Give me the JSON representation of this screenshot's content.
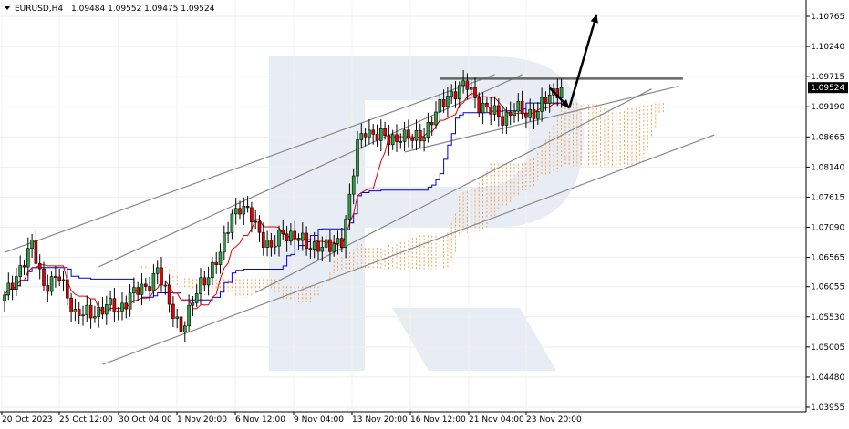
{
  "header": {
    "symbol": "EURUSD,H4",
    "ohlc": "1.09484 1.09552 1.09475 1.09524"
  },
  "price_label": "1.09524",
  "colors": {
    "bull": "#2ea043",
    "bear": "#e60000",
    "tenkan": "#e60000",
    "kijun": "#0000cc",
    "cloud": "#f5a04a",
    "trend": "#888888",
    "arrow": "#000000",
    "watermark": "#d6dfec"
  },
  "chart_data": {
    "type": "candlestick",
    "title": "EURUSD,H4",
    "ylim": [
      1.03955,
      1.11
    ],
    "y_ticks": [
      "1.10765",
      "1.10240",
      "1.09715",
      "1.09190",
      "1.08665",
      "1.08140",
      "1.07615",
      "1.07090",
      "1.06565",
      "1.06055",
      "1.05530",
      "1.05005",
      "1.04480",
      "1.03955"
    ],
    "x_ticks": [
      "20 Oct 2023",
      "25 Oct 12:00",
      "30 Oct 04:00",
      "1 Nov 20:00",
      "6 Nov 12:00",
      "9 Nov 04:00",
      "13 Nov 20:00",
      "16 Nov 12:00",
      "21 Nov 04:00",
      "23 Nov 20:00"
    ],
    "current_price": 1.09524,
    "candle_anchors": [
      [
        0,
        1.0585
      ],
      [
        4,
        1.064
      ],
      [
        7,
        1.0675
      ],
      [
        10,
        1.061
      ],
      [
        14,
        1.062
      ],
      [
        18,
        1.056
      ],
      [
        22,
        1.0555
      ],
      [
        26,
        1.0575
      ],
      [
        29,
        1.056
      ],
      [
        32,
        1.0595
      ],
      [
        36,
        1.06
      ],
      [
        39,
        1.064
      ],
      [
        42,
        1.057
      ],
      [
        45,
        1.0535
      ],
      [
        47,
        1.056
      ],
      [
        50,
        1.061
      ],
      [
        53,
        1.064
      ],
      [
        55,
        1.066
      ],
      [
        58,
        1.0735
      ],
      [
        60,
        1.0745
      ],
      [
        63,
        1.0725
      ],
      [
        66,
        1.069
      ],
      [
        68,
        1.067
      ],
      [
        71,
        1.07
      ],
      [
        74,
        1.0695
      ],
      [
        77,
        1.0675
      ],
      [
        80,
        1.068
      ],
      [
        83,
        1.067
      ],
      [
        86,
        1.069
      ],
      [
        88,
        1.076
      ],
      [
        90,
        1.085
      ],
      [
        92,
        1.088
      ],
      [
        95,
        1.087
      ],
      [
        98,
        1.086
      ],
      [
        101,
        1.087
      ],
      [
        104,
        1.086
      ],
      [
        107,
        1.0875
      ],
      [
        110,
        1.0905
      ],
      [
        113,
        1.094
      ],
      [
        116,
        1.095
      ],
      [
        118,
        1.0955
      ],
      [
        121,
        1.0925
      ],
      [
        124,
        1.091
      ],
      [
        127,
        1.09
      ],
      [
        130,
        1.0915
      ],
      [
        133,
        1.0905
      ],
      [
        136,
        1.0915
      ],
      [
        139,
        1.0935
      ],
      [
        141,
        1.095
      ],
      [
        142,
        1.09524
      ]
    ],
    "trendlines": [
      {
        "from": [
          0,
          1.0665
        ],
        "to": [
          125,
          1.0975
        ]
      },
      {
        "from": [
          24,
          1.064
        ],
        "to": [
          132,
          1.0975
        ]
      },
      {
        "from": [
          25,
          1.047
        ],
        "to": [
          181,
          1.087
        ]
      },
      {
        "from": [
          64,
          1.0595
        ],
        "to": [
          165,
          1.095
        ]
      },
      {
        "from": [
          102,
          1.084
        ],
        "to": [
          172,
          1.0955
        ]
      }
    ],
    "resistance": {
      "from": [
        111,
        1.0968
      ],
      "to": [
        173,
        1.0968
      ]
    },
    "forecast_arrows": [
      {
        "from": [
          139,
          1.0952
        ],
        "to": [
          144,
          1.0917
        ]
      },
      {
        "from": [
          144,
          1.0917
        ],
        "to": [
          151,
          1.108
        ]
      }
    ]
  }
}
